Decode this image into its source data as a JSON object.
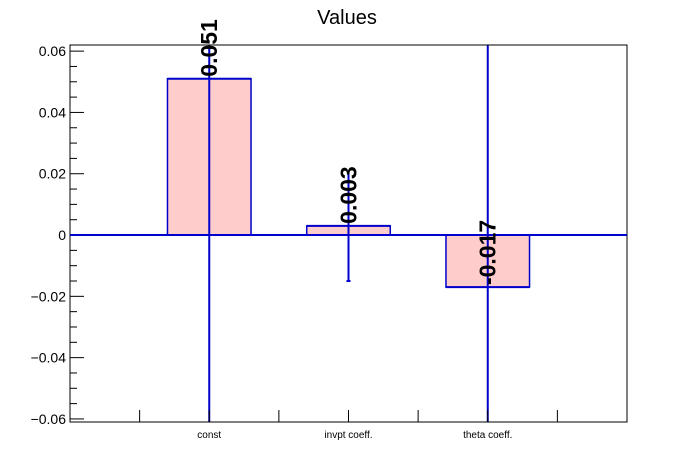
{
  "chart_data": {
    "type": "bar",
    "title": "Values",
    "xlabel": "",
    "ylabel": "",
    "categories": [
      "const",
      "invpt coeff.",
      "theta coeff."
    ],
    "values": [
      0.051,
      0.003,
      -0.017
    ],
    "data_labels": [
      "0.051",
      "0.003",
      "-0.017"
    ],
    "errors": [
      0.2,
      0.018,
      0.2
    ],
    "ylim": [
      -0.061,
      0.062
    ],
    "yticks": [
      -0.06,
      -0.04,
      -0.02,
      0,
      0.02,
      0.04,
      0.06
    ],
    "ytick_labels": [
      "−0.06",
      "−0.04",
      "−0.02",
      "0",
      "0.02",
      "0.04",
      "0.06"
    ],
    "grid": false,
    "colors": {
      "bar_fill": "#ffcccc",
      "bar_edge": "#0000cc",
      "axis": "#000000"
    }
  }
}
